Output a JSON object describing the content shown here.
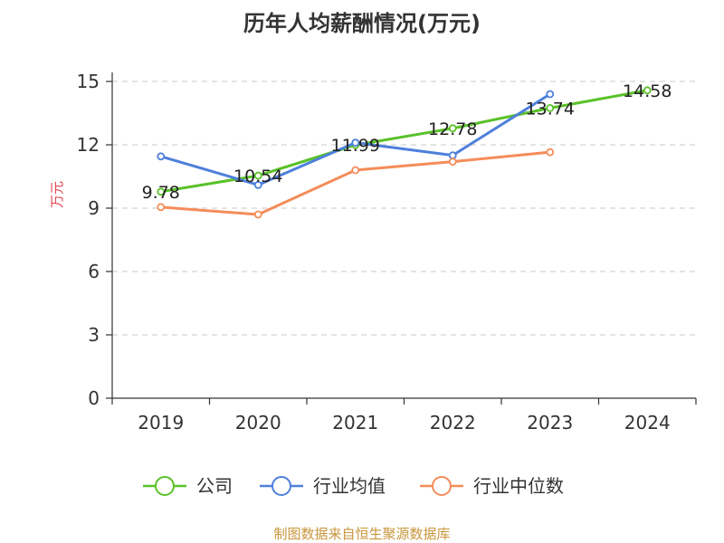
{
  "title": "历年人均薪酬情况(万元)",
  "source_note": "制图数据来自恒生聚源数据库",
  "chart_data": {
    "type": "line",
    "title": "历年人均薪酬情况(万元)",
    "xlabel": "",
    "ylabel": "万元",
    "categories": [
      "2019",
      "2020",
      "2021",
      "2022",
      "2023",
      "2024"
    ],
    "ylim": [
      0,
      15
    ],
    "yticks": [
      0,
      3,
      6,
      9,
      12,
      15
    ],
    "grid": true,
    "legend_position": "bottom",
    "series": [
      {
        "name": "公司",
        "color": "#5ac129",
        "values": [
          9.78,
          10.54,
          11.99,
          12.78,
          13.74,
          14.58
        ],
        "show_labels": true
      },
      {
        "name": "行业均值",
        "color": "#4e7fdb",
        "values": [
          11.45,
          10.1,
          12.1,
          11.5,
          14.4,
          null
        ],
        "show_labels": false
      },
      {
        "name": "行业中位数",
        "color": "#f58c5a",
        "values": [
          9.05,
          8.7,
          10.8,
          11.2,
          11.65,
          null
        ],
        "show_labels": false
      }
    ],
    "data_labels": [
      "9.78",
      "10.54",
      "11.99",
      "12.78",
      "13.74",
      "14.58"
    ]
  }
}
